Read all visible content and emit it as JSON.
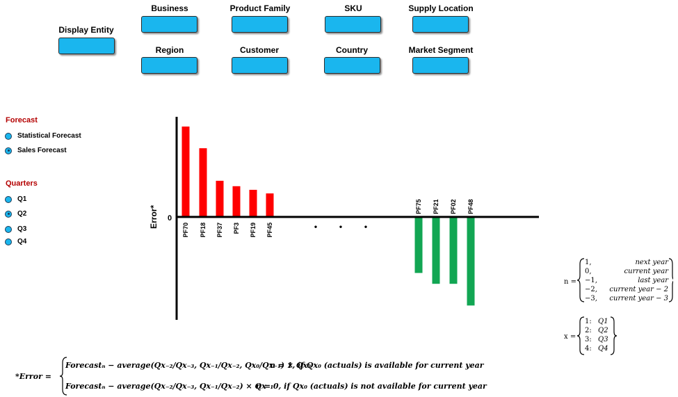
{
  "filters": [
    {
      "label": "Display Entity"
    },
    {
      "label": "Business"
    },
    {
      "label": "Product Family"
    },
    {
      "label": "SKU"
    },
    {
      "label": "Supply Location"
    },
    {
      "label": "Region"
    },
    {
      "label": "Customer"
    },
    {
      "label": "Country"
    },
    {
      "label": "Market Segment"
    }
  ],
  "forecast": {
    "title": "Forecast",
    "options": [
      {
        "label": "Statistical Forecast",
        "selected": false
      },
      {
        "label": "Sales Forecast",
        "selected": true
      }
    ]
  },
  "quarters": {
    "title": "Quarters",
    "options": [
      {
        "label": "Q1",
        "selected": false
      },
      {
        "label": "Q2",
        "selected": true
      },
      {
        "label": "Q3",
        "selected": false
      },
      {
        "label": "Q4",
        "selected": false
      }
    ]
  },
  "chart_data": {
    "type": "bar",
    "ylabel": "Error*",
    "zero_label": "0",
    "grid": false,
    "categories": [
      "PF70",
      "PF18",
      "PF37",
      "PF3",
      "PF19",
      "PF45",
      "•",
      "•",
      "•",
      "PF75",
      "PF21",
      "PF02",
      "PF48"
    ],
    "series": [
      {
        "values": [
          100,
          76,
          40,
          34,
          30,
          26,
          0,
          0,
          0,
          -62,
          -74,
          -74,
          -98
        ]
      }
    ],
    "colors": {
      "positive": "#ff0000",
      "negative": "#12a653"
    },
    "ylim": [
      -110,
      105
    ]
  },
  "legend_n": {
    "prefix": "n =",
    "rows": [
      {
        "num": "1,",
        "text": "next year"
      },
      {
        "num": "0,",
        "text": "current year"
      },
      {
        "num": "−1,",
        "text": "last year"
      },
      {
        "num": "−2,",
        "text": "current year − 2"
      },
      {
        "num": "−3,",
        "text": "current year − 3"
      }
    ]
  },
  "legend_x": {
    "prefix": "x =",
    "rows": [
      {
        "num": "1:",
        "text": "Q1"
      },
      {
        "num": "2:",
        "text": "Q2"
      },
      {
        "num": "3:",
        "text": "Q3"
      },
      {
        "num": "4:",
        "text": "Q4"
      }
    ]
  },
  "formula": {
    "label": "*Error =",
    "row1": {
      "expr": "Forecastₙ − average(Qx₋₂/Qx₋₃, Qx₋₁/Qx₋₂, Qx₀/Qx₋₁) × Qx₀",
      "cond": "n = 1, if Qx₀ (actuals) is available for current year"
    },
    "row2": {
      "expr": "Forecastₙ − average(Qx₋₂/Qx₋₃, Qx₋₁/Qx₋₂) × Qx₋₁",
      "cond": "n = 0, if Qx₀ (actuals) is not available for current year"
    }
  }
}
